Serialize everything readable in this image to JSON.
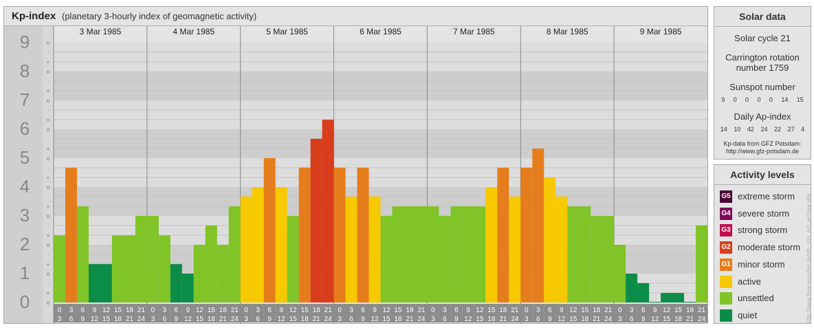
{
  "title": {
    "main": "Kp-index",
    "sub": "(planetary 3-hourly index of geomagnetic activity)"
  },
  "chart_data": {
    "type": "bar",
    "days": [
      "3 Mar 1985",
      "4 Mar 1985",
      "5 Mar 1985",
      "6 Mar 1985",
      "7 Mar 1985",
      "8 Mar 1985",
      "9 Mar 1985"
    ],
    "interval_starts": [
      "0",
      "3",
      "6",
      "9",
      "12",
      "15",
      "18",
      "21"
    ],
    "interval_ends": [
      "3",
      "6",
      "9",
      "12",
      "15",
      "18",
      "21",
      "24"
    ],
    "y_ticks": [
      "0",
      "1",
      "2",
      "3",
      "4",
      "5",
      "6",
      "7",
      "8",
      "9"
    ],
    "y_minor_labels": [
      "o",
      "+",
      "-",
      "o",
      "+",
      "-",
      "o",
      "+",
      "-",
      "o",
      "+",
      "-",
      "o",
      "+",
      "-",
      "o",
      "+",
      "-",
      "o",
      "+",
      "-",
      "o",
      "+",
      "-",
      "o",
      "+",
      "-",
      "o"
    ],
    "ylim": [
      0,
      9
    ],
    "values": [
      2.33,
      4.67,
      3.33,
      1.33,
      1.33,
      2.33,
      2.33,
      3.0,
      3.0,
      2.33,
      1.33,
      1.0,
      2.0,
      2.67,
      2.0,
      3.33,
      3.67,
      4.0,
      5.0,
      4.0,
      3.0,
      4.67,
      5.67,
      6.33,
      4.67,
      3.67,
      4.67,
      3.67,
      3.0,
      3.33,
      3.33,
      3.33,
      3.33,
      3.0,
      3.33,
      3.33,
      3.33,
      4.0,
      4.67,
      3.67,
      4.67,
      5.33,
      4.33,
      3.67,
      3.33,
      3.33,
      3.0,
      3.0,
      2.0,
      1.0,
      0.67,
      0.0,
      0.33,
      0.33,
      0.0,
      2.67
    ],
    "colors": {
      "quiet": "#0b8d48",
      "unsettled": "#80c427",
      "active": "#f6c900",
      "minor": "#e57d1c",
      "moderate": "#d93e1c",
      "strong": "#c10f4d",
      "severe": "#7d0b5a",
      "extreme": "#4b0433"
    }
  },
  "solar": {
    "title": "Solar data",
    "cycle": "Solar cycle 21",
    "carrington_line1": "Carrington rotation",
    "carrington_line2": "number 1759",
    "sunspot_label": "Sunspot number",
    "sunspot_values": [
      "9",
      "0",
      "0",
      "0",
      "0",
      "14",
      "15"
    ],
    "ap_label": "Daily Ap-index",
    "ap_values": [
      "14",
      "10",
      "42",
      "24",
      "22",
      "27",
      "4"
    ],
    "source_line1": "Kp-data from GFZ Potsdam:",
    "source_line2": "http://www.gfz-potsdam.de"
  },
  "levels": {
    "title": "Activity levels",
    "items": [
      {
        "badge": "G5",
        "label": "extreme storm",
        "color": "#4b0433"
      },
      {
        "badge": "G4",
        "label": "severe storm",
        "color": "#7d0b5a"
      },
      {
        "badge": "G3",
        "label": "strong storm",
        "color": "#c10f4d"
      },
      {
        "badge": "G2",
        "label": "moderate storm",
        "color": "#d93e1c"
      },
      {
        "badge": "G1",
        "label": "minor storm",
        "color": "#e57d1c"
      },
      {
        "badge": "",
        "label": "active",
        "color": "#f6c900"
      },
      {
        "badge": "",
        "label": "unsettled",
        "color": "#80c427"
      },
      {
        "badge": "",
        "label": "quiet",
        "color": "#0b8d48"
      }
    ]
  },
  "watermark": "http://www.freie-seucher.de/tdh_cmt_m3_archive.php"
}
